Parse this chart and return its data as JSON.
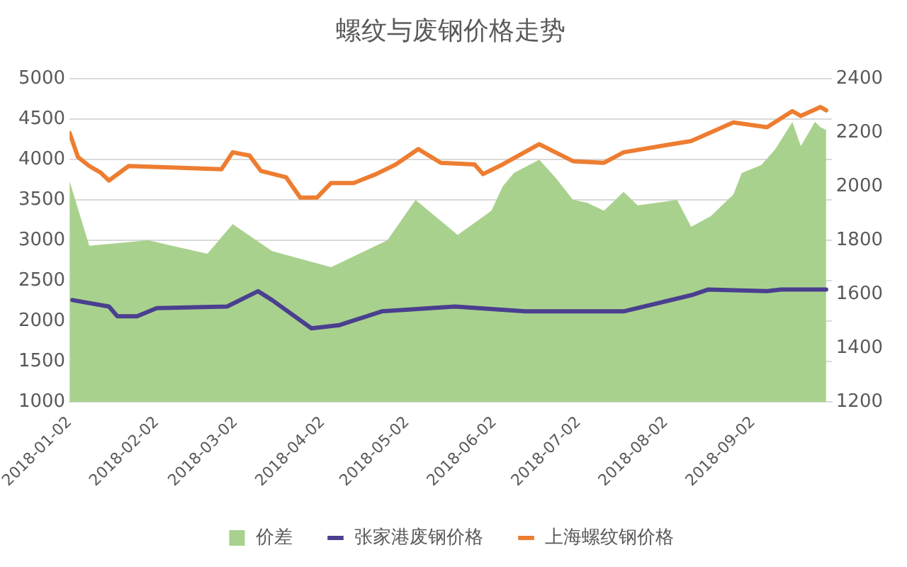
{
  "chart_data": {
    "type": "line",
    "title": "螺纹与废钢价格走势",
    "xlim": [
      "2018-01-02",
      "2018-09-30"
    ],
    "xticks": [
      "2018-01-02",
      "2018-02-02",
      "2018-03-02",
      "2018-04-02",
      "2018-05-02",
      "2018-06-02",
      "2018-07-02",
      "2018-08-02",
      "2018-09-02"
    ],
    "ylim": [
      1000,
      5000
    ],
    "yticks": [
      1000,
      1500,
      2000,
      2500,
      3000,
      3500,
      4000,
      4500,
      5000
    ],
    "y2lim": [
      1200,
      2400
    ],
    "y2ticks": [
      1200,
      1400,
      1600,
      1800,
      2000,
      2200,
      2400
    ],
    "grid": "y",
    "legend": "bottom",
    "marker": "none",
    "series": [
      {
        "name": "价差",
        "type": "area",
        "axis": "y2",
        "color": "#a9d18e",
        "x": [
          "2018-01-02",
          "2018-01-09",
          "2018-01-30",
          "2018-02-20",
          "2018-03-01",
          "2018-03-15",
          "2018-04-05",
          "2018-04-25",
          "2018-05-05",
          "2018-05-20",
          "2018-06-01",
          "2018-06-05",
          "2018-06-09",
          "2018-06-18",
          "2018-06-24",
          "2018-06-30",
          "2018-07-05",
          "2018-07-11",
          "2018-07-18",
          "2018-07-23",
          "2018-07-30",
          "2018-08-06",
          "2018-08-11",
          "2018-08-18",
          "2018-08-26",
          "2018-08-29",
          "2018-09-05",
          "2018-09-10",
          "2018-09-16",
          "2018-09-19",
          "2018-09-24",
          "2018-09-26",
          "2018-09-28"
        ],
        "values": [
          2020,
          1780,
          1800,
          1750,
          1860,
          1760,
          1700,
          1800,
          1950,
          1820,
          1910,
          2000,
          2050,
          2100,
          2030,
          1950,
          1940,
          1910,
          1980,
          1930,
          1940,
          1950,
          1850,
          1890,
          1970,
          2050,
          2080,
          2140,
          2240,
          2150,
          2240,
          2220,
          2210
        ]
      },
      {
        "name": "张家港废钢价格",
        "axis": "y",
        "color": "#4a3f8f",
        "x": [
          "2018-01-03",
          "2018-01-16",
          "2018-01-19",
          "2018-01-26",
          "2018-02-02",
          "2018-02-27",
          "2018-03-10",
          "2018-03-15",
          "2018-03-29",
          "2018-04-08",
          "2018-04-23",
          "2018-05-19",
          "2018-06-13",
          "2018-07-18",
          "2018-08-11",
          "2018-08-17",
          "2018-09-07",
          "2018-09-12",
          "2018-09-28"
        ],
        "values": [
          2260,
          2180,
          2060,
          2060,
          2160,
          2180,
          2370,
          2260,
          1910,
          1950,
          2120,
          2180,
          2120,
          2120,
          2320,
          2390,
          2370,
          2390,
          2390
        ]
      },
      {
        "name": "上海螺纹钢价格",
        "axis": "y",
        "color": "#ed7d31",
        "x": [
          "2018-01-02",
          "2018-01-05",
          "2018-01-09",
          "2018-01-13",
          "2018-01-16",
          "2018-01-23",
          "2018-02-25",
          "2018-03-01",
          "2018-03-07",
          "2018-03-11",
          "2018-03-20",
          "2018-03-25",
          "2018-03-31",
          "2018-04-05",
          "2018-04-13",
          "2018-04-21",
          "2018-04-28",
          "2018-05-06",
          "2018-05-14",
          "2018-05-26",
          "2018-05-29",
          "2018-06-05",
          "2018-06-18",
          "2018-06-30",
          "2018-07-11",
          "2018-07-18",
          "2018-08-04",
          "2018-08-11",
          "2018-08-26",
          "2018-09-07",
          "2018-09-16",
          "2018-09-19",
          "2018-09-26",
          "2018-09-28"
        ],
        "values": [
          4330,
          4030,
          3920,
          3840,
          3740,
          3920,
          3880,
          4090,
          4050,
          3860,
          3780,
          3530,
          3530,
          3710,
          3710,
          3820,
          3940,
          4130,
          3960,
          3940,
          3820,
          3940,
          4190,
          3980,
          3960,
          4090,
          4190,
          4230,
          4460,
          4400,
          4600,
          4540,
          4650,
          4610
        ]
      }
    ]
  }
}
